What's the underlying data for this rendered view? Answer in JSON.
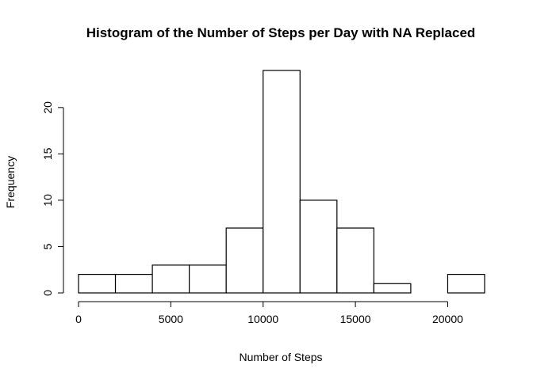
{
  "chart_data": {
    "type": "bar",
    "title": "Histogram of the Number of Steps per Day with NA Replaced",
    "xlabel": "Number of Steps",
    "ylabel": "Frequency",
    "bins": [
      {
        "from": 0,
        "to": 2000,
        "count": 2
      },
      {
        "from": 2000,
        "to": 4000,
        "count": 2
      },
      {
        "from": 4000,
        "to": 6000,
        "count": 3
      },
      {
        "from": 6000,
        "to": 8000,
        "count": 3
      },
      {
        "from": 8000,
        "to": 10000,
        "count": 7
      },
      {
        "from": 10000,
        "to": 12000,
        "count": 24
      },
      {
        "from": 12000,
        "to": 14000,
        "count": 10
      },
      {
        "from": 14000,
        "to": 16000,
        "count": 7
      },
      {
        "from": 16000,
        "to": 18000,
        "count": 1
      },
      {
        "from": 18000,
        "to": 20000,
        "count": 0
      },
      {
        "from": 20000,
        "to": 22000,
        "count": 2
      }
    ],
    "xlim": [
      0,
      22000
    ],
    "ylim": [
      0,
      24
    ],
    "x_ticks": [
      0,
      5000,
      10000,
      15000,
      20000
    ],
    "y_ticks": [
      0,
      5,
      10,
      15,
      20
    ],
    "x_tick_labels": [
      "0",
      "5000",
      "10000",
      "15000",
      "20000"
    ],
    "y_tick_labels": [
      "0",
      "5",
      "10",
      "15",
      "20"
    ],
    "grid": false,
    "bar_fill": "#ffffff",
    "bar_stroke": "#000000"
  }
}
